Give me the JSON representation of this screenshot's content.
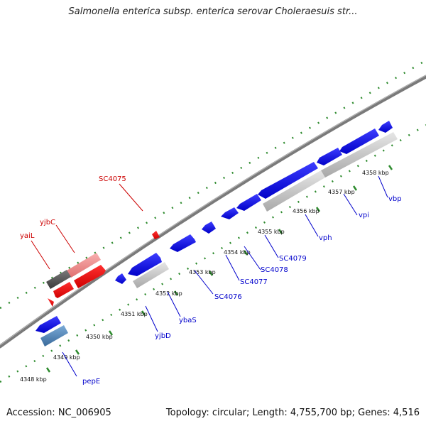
{
  "title": "Salmonella enterica subsp. enterica serovar Choleraesuis str...",
  "footer": {
    "accession": "Accession: NC_006905",
    "stats": "Topology: circular; Length: 4,755,700 bp; Genes: 4,516"
  },
  "colors": {
    "forward_gene": "#ff0000",
    "reverse_gene": "#0000ff",
    "forward_label": "#cc0000",
    "reverse_label": "#0000cc",
    "backbone": "#7a7a7a",
    "tick": "#2e8b2e"
  },
  "kbp_labels": [
    "4348 kbp",
    "4349 kbp",
    "4350 kbp",
    "4351 kbp",
    "4352 kbp",
    "4353 kbp",
    "4354 kbp",
    "4355 kbp",
    "4356 kbp",
    "4357 kbp",
    "4358 kbp"
  ],
  "gene_labels": [
    {
      "text": "SC4075",
      "strand": "forward"
    },
    {
      "text": "yjbC",
      "strand": "forward"
    },
    {
      "text": "yaiL",
      "strand": "forward"
    },
    {
      "text": "pepE",
      "strand": "reverse"
    },
    {
      "text": "yjbD",
      "strand": "reverse"
    },
    {
      "text": "ybaS",
      "strand": "reverse"
    },
    {
      "text": "SC4076",
      "strand": "reverse"
    },
    {
      "text": "SC4077",
      "strand": "reverse"
    },
    {
      "text": "SC4078",
      "strand": "reverse"
    },
    {
      "text": "SC4079",
      "strand": "reverse"
    },
    {
      "text": "vph",
      "strand": "reverse"
    },
    {
      "text": "vpi",
      "strand": "reverse"
    },
    {
      "text": "vbp",
      "strand": "reverse"
    }
  ]
}
